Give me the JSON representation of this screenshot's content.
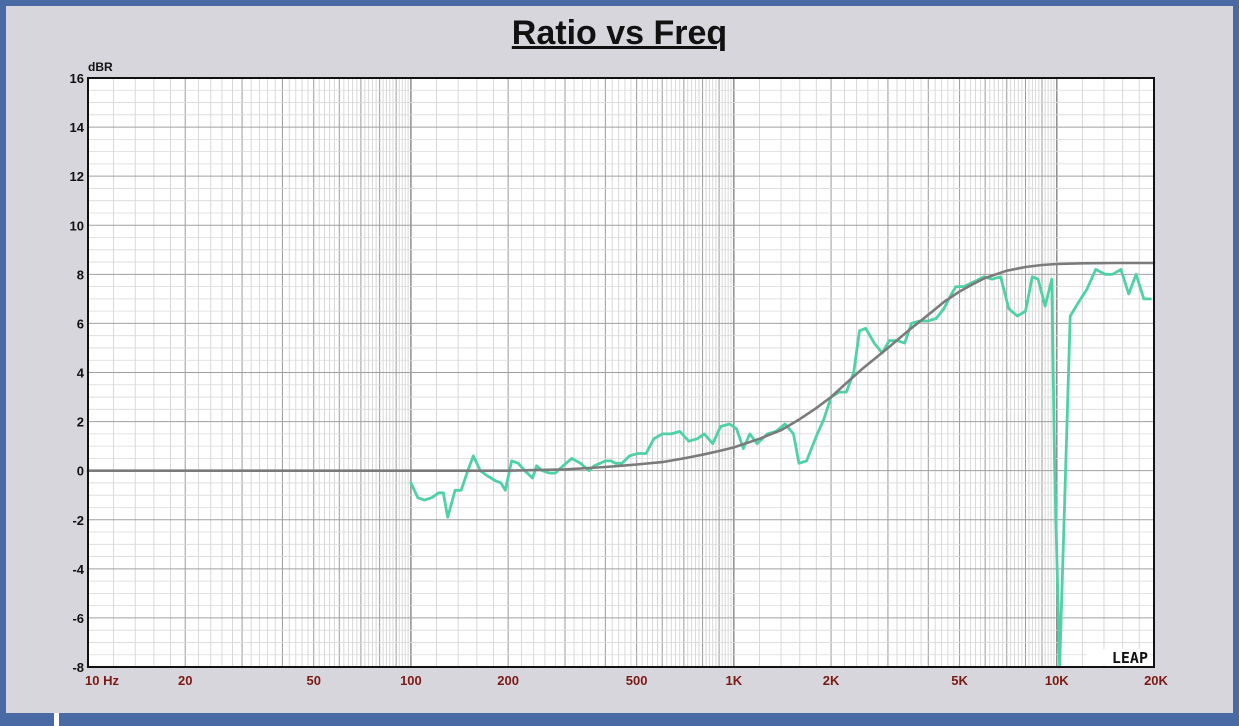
{
  "chart_data": {
    "type": "line",
    "title": "Ratio vs Freq",
    "ylabel": "dBR",
    "xscale": "log",
    "xlim": [
      10,
      20000
    ],
    "ylim": [
      -8,
      16
    ],
    "grid": true,
    "y_ticks": [
      "16",
      "14",
      "12",
      "10",
      "8",
      "6",
      "4",
      "2",
      "0",
      "-2",
      "-4",
      "-6",
      "-8"
    ],
    "x_ticks": [
      {
        "value": 10,
        "label": "10  Hz"
      },
      {
        "value": 20,
        "label": "20"
      },
      {
        "value": 50,
        "label": "50"
      },
      {
        "value": 100,
        "label": "100"
      },
      {
        "value": 200,
        "label": "200"
      },
      {
        "value": 500,
        "label": "500"
      },
      {
        "value": 1000,
        "label": "1K"
      },
      {
        "value": 2000,
        "label": "2K"
      },
      {
        "value": 5000,
        "label": "5K"
      },
      {
        "value": 10000,
        "label": "10K"
      },
      {
        "value": 20000,
        "label": "20K"
      }
    ],
    "logo_text": "LEAP",
    "series": [
      {
        "color": "#4fd1a6",
        "points": [
          [
            100,
            -0.5
          ],
          [
            105,
            -1.1
          ],
          [
            110,
            -1.2
          ],
          [
            116,
            -1.1
          ],
          [
            122,
            -0.9
          ],
          [
            126,
            -0.9
          ],
          [
            130,
            -1.9
          ],
          [
            137,
            -0.8
          ],
          [
            143,
            -0.8
          ],
          [
            150,
            0.0
          ],
          [
            156,
            0.6
          ],
          [
            164,
            0.0
          ],
          [
            172,
            -0.2
          ],
          [
            182,
            -0.4
          ],
          [
            190,
            -0.5
          ],
          [
            196,
            -0.8
          ],
          [
            205,
            0.4
          ],
          [
            215,
            0.3
          ],
          [
            225,
            0.0
          ],
          [
            238,
            -0.3
          ],
          [
            245,
            0.2
          ],
          [
            255,
            0.0
          ],
          [
            268,
            -0.1
          ],
          [
            280,
            -0.1
          ],
          [
            296,
            0.2
          ],
          [
            315,
            0.5
          ],
          [
            335,
            0.3
          ],
          [
            356,
            0.0
          ],
          [
            370,
            0.2
          ],
          [
            385,
            0.3
          ],
          [
            400,
            0.4
          ],
          [
            416,
            0.4
          ],
          [
            430,
            0.3
          ],
          [
            450,
            0.3
          ],
          [
            475,
            0.6
          ],
          [
            505,
            0.7
          ],
          [
            535,
            0.7
          ],
          [
            565,
            1.3
          ],
          [
            600,
            1.5
          ],
          [
            640,
            1.5
          ],
          [
            680,
            1.6
          ],
          [
            725,
            1.2
          ],
          [
            770,
            1.3
          ],
          [
            810,
            1.5
          ],
          [
            860,
            1.1
          ],
          [
            910,
            1.8
          ],
          [
            970,
            1.9
          ],
          [
            1020,
            1.7
          ],
          [
            1070,
            0.9
          ],
          [
            1120,
            1.5
          ],
          [
            1180,
            1.1
          ],
          [
            1270,
            1.5
          ],
          [
            1350,
            1.6
          ],
          [
            1440,
            1.9
          ],
          [
            1530,
            1.5
          ],
          [
            1590,
            0.3
          ],
          [
            1680,
            0.4
          ],
          [
            1800,
            1.4
          ],
          [
            1900,
            2.1
          ],
          [
            2000,
            3.0
          ],
          [
            2120,
            3.2
          ],
          [
            2230,
            3.2
          ],
          [
            2350,
            4.0
          ],
          [
            2450,
            5.7
          ],
          [
            2560,
            5.8
          ],
          [
            2720,
            5.2
          ],
          [
            2880,
            4.8
          ],
          [
            3030,
            5.3
          ],
          [
            3200,
            5.3
          ],
          [
            3380,
            5.2
          ],
          [
            3550,
            6.0
          ],
          [
            3760,
            6.1
          ],
          [
            3990,
            6.1
          ],
          [
            4230,
            6.2
          ],
          [
            4470,
            6.6
          ],
          [
            4720,
            7.2
          ],
          [
            4870,
            7.5
          ],
          [
            5150,
            7.5
          ],
          [
            5550,
            7.7
          ],
          [
            5950,
            7.9
          ],
          [
            6300,
            7.8
          ],
          [
            6700,
            7.9
          ],
          [
            7100,
            6.6
          ],
          [
            7550,
            6.3
          ],
          [
            8000,
            6.5
          ],
          [
            8400,
            7.9
          ],
          [
            8750,
            7.8
          ],
          [
            9200,
            6.7
          ],
          [
            9650,
            7.8
          ],
          [
            9850,
            0.0
          ],
          [
            10200,
            -8.0
          ],
          [
            10650,
            0.0
          ],
          [
            11000,
            6.3
          ],
          [
            11600,
            6.8
          ],
          [
            12400,
            7.4
          ],
          [
            13200,
            8.2
          ],
          [
            14100,
            8.0
          ],
          [
            14900,
            8.0
          ],
          [
            15800,
            8.2
          ],
          [
            16700,
            7.2
          ],
          [
            17600,
            8.0
          ],
          [
            18600,
            7.0
          ],
          [
            19500,
            7.0
          ]
        ]
      },
      {
        "color": "#7b7b7b",
        "points": [
          [
            10,
            0.0
          ],
          [
            100,
            0.0
          ],
          [
            200,
            0.0
          ],
          [
            300,
            0.05
          ],
          [
            400,
            0.15
          ],
          [
            500,
            0.25
          ],
          [
            600,
            0.35
          ],
          [
            700,
            0.5
          ],
          [
            800,
            0.65
          ],
          [
            900,
            0.8
          ],
          [
            1000,
            0.95
          ],
          [
            1200,
            1.3
          ],
          [
            1400,
            1.65
          ],
          [
            1600,
            2.1
          ],
          [
            1800,
            2.55
          ],
          [
            2000,
            3.0
          ],
          [
            2200,
            3.5
          ],
          [
            2500,
            4.15
          ],
          [
            3000,
            5.0
          ],
          [
            3500,
            5.75
          ],
          [
            4000,
            6.35
          ],
          [
            4500,
            6.9
          ],
          [
            5000,
            7.3
          ],
          [
            5500,
            7.6
          ],
          [
            6000,
            7.85
          ],
          [
            7000,
            8.15
          ],
          [
            8000,
            8.3
          ],
          [
            9000,
            8.38
          ],
          [
            10000,
            8.42
          ],
          [
            12000,
            8.45
          ],
          [
            15000,
            8.46
          ],
          [
            20000,
            8.46
          ]
        ]
      }
    ]
  }
}
